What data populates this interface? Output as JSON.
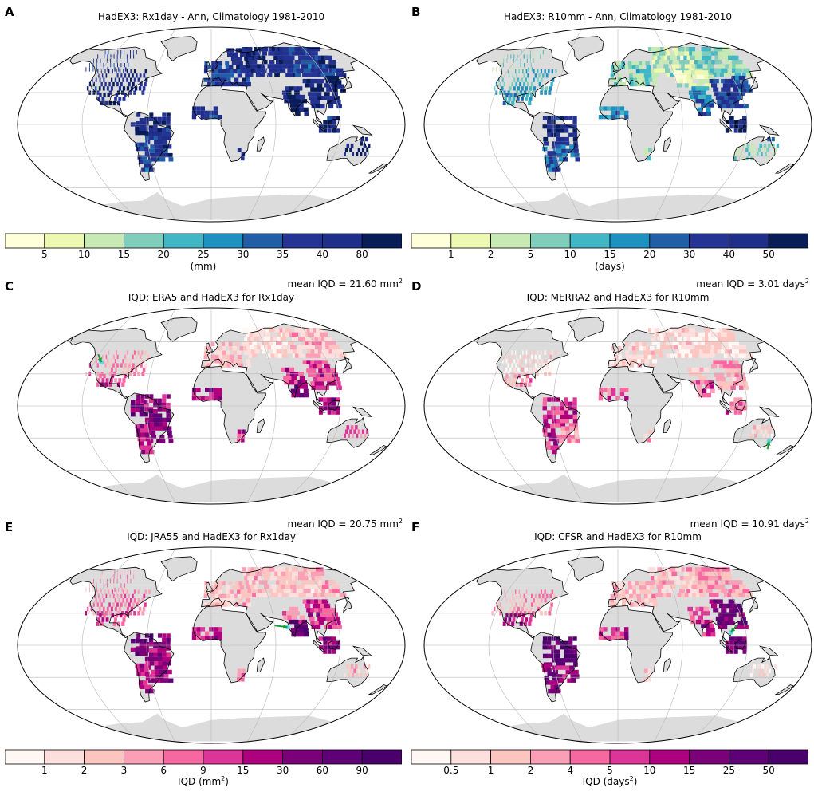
{
  "colors": {
    "land": "#dcdcdc",
    "ocean": "#ffffff",
    "grid": "#b8b8b8",
    "coast": "#000000",
    "blue_scale": [
      "#ffffd9",
      "#edf8b1",
      "#c7e9b4",
      "#7fcdbb",
      "#41b6c4",
      "#1d91c0",
      "#225ea8",
      "#253494",
      "#1f2e8a",
      "#081d58"
    ],
    "pink_scale": [
      "#fff7f3",
      "#fde0dd",
      "#fcc5c0",
      "#fa9fb5",
      "#f768a1",
      "#dd3497",
      "#ae017e",
      "#7a0177",
      "#5e0076",
      "#49006a"
    ]
  },
  "panels": [
    {
      "id": "A",
      "label": "A",
      "title": "HadEX3: Rx1day - Ann, Climatology 1981-2010",
      "mean_prefix": "",
      "mean_value": "",
      "mean_unit": "",
      "mean_sup": "",
      "scale": "blue",
      "regime": "rx1day"
    },
    {
      "id": "B",
      "label": "B",
      "title": "HadEX3: R10mm - Ann, Climatology 1981-2010",
      "mean_prefix": "",
      "mean_value": "",
      "mean_unit": "",
      "mean_sup": "",
      "scale": "blue",
      "regime": "r10mm"
    },
    {
      "id": "C",
      "label": "C",
      "title": "IQD: ERA5 and HadEX3 for Rx1day",
      "mean_prefix": "mean IQD =",
      "mean_value": "21.60",
      "mean_unit": "mm",
      "mean_sup": "2",
      "scale": "pink",
      "regime": "iqd1",
      "arrow": "north-america"
    },
    {
      "id": "D",
      "label": "D",
      "title": "IQD: MERRA2 and HadEX3 for R10mm",
      "mean_prefix": "mean IQD =",
      "mean_value": " 3.01",
      "mean_unit": "days",
      "mean_sup": "2",
      "scale": "pink",
      "regime": "iqd_low",
      "arrow": "australia"
    },
    {
      "id": "E",
      "label": "E",
      "title": "IQD: JRA55 and HadEX3 for Rx1day",
      "mean_prefix": "mean IQD =",
      "mean_value": "20.75",
      "mean_unit": "mm",
      "mean_sup": "2",
      "scale": "pink",
      "regime": "iqd2",
      "arrow": "india"
    },
    {
      "id": "F",
      "label": "F",
      "title": "IQD: CFSR and HadEX3 for R10mm",
      "mean_prefix": "mean IQD =",
      "mean_value": "10.91",
      "mean_unit": "days",
      "mean_sup": "2",
      "scale": "pink",
      "regime": "iqd3",
      "arrow": "se-asia"
    }
  ],
  "colorbars": [
    {
      "id": "top-left",
      "scale": "blue",
      "ticks": [
        "5",
        "10",
        "15",
        "20",
        "25",
        "30",
        "35",
        "40",
        "80"
      ],
      "label_text": "(mm)",
      "label_sup": ""
    },
    {
      "id": "top-right",
      "scale": "blue",
      "ticks": [
        "1",
        "2",
        "5",
        "10",
        "15",
        "20",
        "30",
        "40",
        "50"
      ],
      "label_text": "(days)",
      "label_sup": ""
    },
    {
      "id": "bottom-left",
      "scale": "pink",
      "ticks": [
        "1",
        "2",
        "3",
        "6",
        "9",
        "15",
        "30",
        "60",
        "90"
      ],
      "label_text": "IQD (mm",
      "label_sup": "2"
    },
    {
      "id": "bottom-right",
      "scale": "pink",
      "ticks": [
        "0.5",
        "1",
        "2",
        "4",
        "5",
        "10",
        "15",
        "25",
        "50"
      ],
      "label_text": "IQD (days",
      "label_sup": "2"
    }
  ]
}
